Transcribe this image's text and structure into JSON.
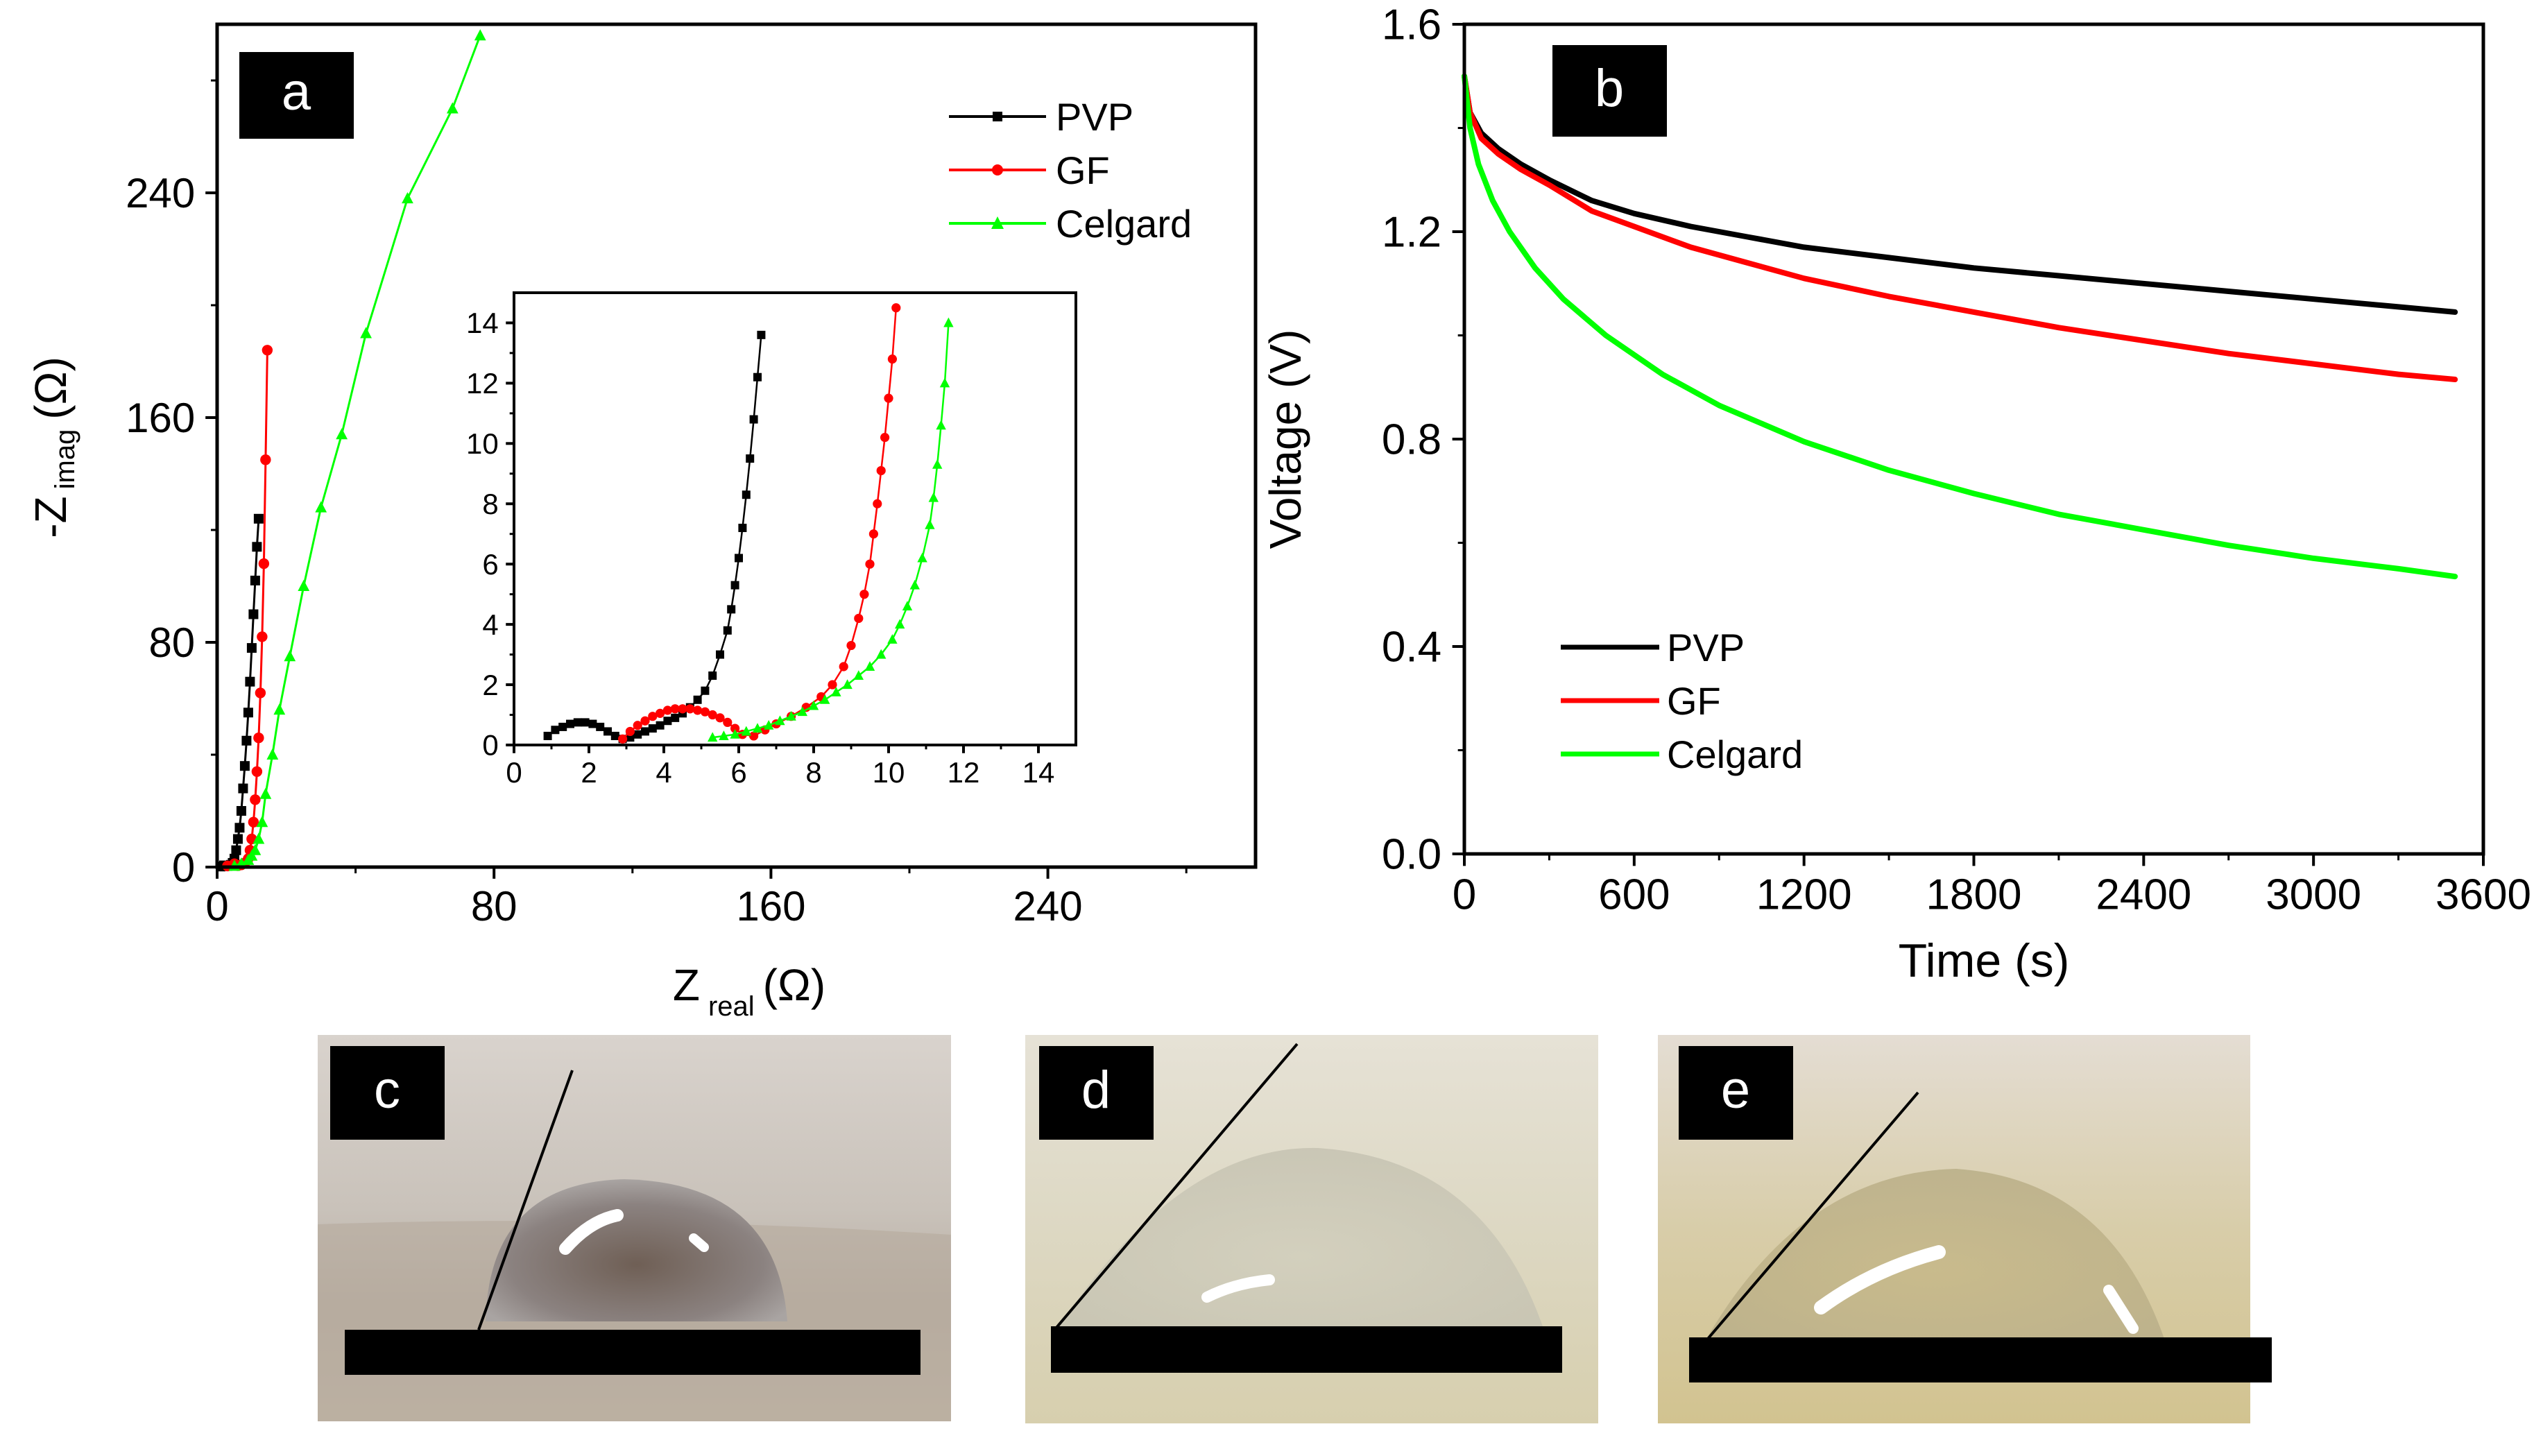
{
  "panel_labels": {
    "a": "a",
    "b": "b",
    "c": "c",
    "d": "d",
    "e": "e"
  },
  "chart_data": [
    {
      "id": "a",
      "type": "scatter",
      "title": "",
      "xlabel": {
        "main": "Z",
        "sub": "real",
        "unit": "(Ω)"
      },
      "ylabel": {
        "main": "-Z",
        "sub": "imag",
        "unit": "(Ω)"
      },
      "xlim": [
        0,
        300
      ],
      "ylim": [
        0,
        300
      ],
      "xticks": [
        0,
        80,
        160,
        240
      ],
      "yticks": [
        0,
        80,
        160,
        240
      ],
      "legend_position": "top-right",
      "series": [
        {
          "name": "PVP",
          "color": "#000000",
          "marker": "square",
          "x": [
            1,
            2,
            3,
            4,
            4.5,
            5,
            5.5,
            6,
            6.5,
            7,
            7.5,
            8,
            8.5,
            9,
            9.5,
            10,
            10.5,
            11,
            11.5,
            12
          ],
          "y": [
            0.2,
            0.6,
            0.4,
            0.8,
            1.5,
            3,
            6,
            10,
            14,
            20,
            28,
            36,
            45,
            55,
            66,
            78,
            90,
            102,
            114,
            124
          ]
        },
        {
          "name": "GF",
          "color": "#ff0000",
          "marker": "circle",
          "x": [
            3,
            5,
            6,
            7,
            8,
            9,
            9.5,
            10,
            10.5,
            11,
            11.5,
            12,
            12.5,
            13,
            13.5,
            14,
            14.5
          ],
          "y": [
            0.4,
            1.2,
            0.5,
            0.8,
            1.5,
            3,
            6,
            10,
            16,
            24,
            34,
            46,
            62,
            82,
            108,
            145,
            184
          ]
        },
        {
          "name": "Celgard",
          "color": "#00ff00",
          "marker": "triangle",
          "x": [
            5,
            7,
            9,
            10,
            11,
            12,
            13,
            14,
            16,
            18,
            21,
            25,
            30,
            36,
            43,
            55,
            68,
            76
          ],
          "y": [
            0.4,
            1.2,
            2.5,
            4,
            6,
            10,
            16,
            26,
            40,
            56,
            75,
            100,
            128,
            154,
            190,
            238,
            270,
            296
          ]
        }
      ],
      "inset": {
        "xlim": [
          0,
          15
        ],
        "ylim": [
          0,
          15
        ],
        "xticks": [
          0,
          2,
          4,
          6,
          8,
          10,
          12,
          14
        ],
        "yticks": [
          0,
          2,
          4,
          6,
          8,
          10,
          12,
          14
        ],
        "series": [
          {
            "name": "PVP",
            "color": "#000000",
            "marker": "square",
            "x": [
              0.9,
              1.1,
              1.3,
              1.5,
              1.7,
              1.9,
              2.1,
              2.3,
              2.5,
              2.7,
              2.9,
              3.1,
              3.3,
              3.5,
              3.7,
              3.9,
              4.1,
              4.3,
              4.5,
              4.7,
              4.9,
              5.1,
              5.3,
              5.5,
              5.7,
              5.8,
              5.9,
              6.0,
              6.1,
              6.2,
              6.3,
              6.4,
              6.5,
              6.6
            ],
            "y": [
              0.3,
              0.5,
              0.6,
              0.7,
              0.75,
              0.75,
              0.7,
              0.6,
              0.45,
              0.3,
              0.2,
              0.25,
              0.35,
              0.45,
              0.55,
              0.65,
              0.8,
              0.9,
              1.05,
              1.25,
              1.5,
              1.8,
              2.3,
              3.0,
              3.8,
              4.5,
              5.3,
              6.2,
              7.2,
              8.3,
              9.5,
              10.8,
              12.2,
              13.6
            ]
          },
          {
            "name": "GF",
            "color": "#ff0000",
            "marker": "circle",
            "x": [
              2.9,
              3.1,
              3.3,
              3.5,
              3.7,
              3.9,
              4.1,
              4.3,
              4.5,
              4.7,
              4.9,
              5.1,
              5.3,
              5.5,
              5.7,
              5.9,
              6.1,
              6.4,
              6.7,
              7.0,
              7.4,
              7.8,
              8.2,
              8.5,
              8.8,
              9.0,
              9.2,
              9.35,
              9.5,
              9.6,
              9.7,
              9.8,
              9.9,
              10.0,
              10.1,
              10.2
            ],
            "y": [
              0.2,
              0.45,
              0.65,
              0.8,
              0.95,
              1.05,
              1.15,
              1.2,
              1.2,
              1.2,
              1.15,
              1.1,
              1.0,
              0.9,
              0.75,
              0.55,
              0.35,
              0.3,
              0.5,
              0.7,
              0.95,
              1.25,
              1.6,
              2.0,
              2.6,
              3.3,
              4.2,
              5.0,
              6.0,
              7.0,
              8.0,
              9.1,
              10.2,
              11.5,
              12.8,
              14.5
            ]
          },
          {
            "name": "Celgard",
            "color": "#00ff00",
            "marker": "triangle",
            "x": [
              5.3,
              5.6,
              5.9,
              6.2,
              6.5,
              6.8,
              7.1,
              7.4,
              7.7,
              8.0,
              8.3,
              8.6,
              8.9,
              9.2,
              9.5,
              9.8,
              10.1,
              10.3,
              10.5,
              10.7,
              10.9,
              11.1,
              11.2,
              11.3,
              11.4,
              11.5,
              11.6
            ],
            "y": [
              0.25,
              0.3,
              0.35,
              0.45,
              0.55,
              0.65,
              0.8,
              0.95,
              1.1,
              1.3,
              1.5,
              1.75,
              2.0,
              2.3,
              2.6,
              3.0,
              3.5,
              4.0,
              4.6,
              5.3,
              6.2,
              7.3,
              8.2,
              9.3,
              10.6,
              12.0,
              14.0
            ]
          }
        ]
      }
    },
    {
      "id": "b",
      "type": "line",
      "title": "",
      "xlabel": "Time (s)",
      "ylabel": "Voltage (V)",
      "xlim": [
        0,
        3600
      ],
      "ylim": [
        0.0,
        1.6
      ],
      "xticks": [
        0,
        600,
        1200,
        1800,
        2400,
        3000,
        3600
      ],
      "yticks": [
        0.0,
        0.4,
        0.8,
        1.2,
        1.6
      ],
      "legend_position": "bottom-left",
      "series": [
        {
          "name": "PVP",
          "color": "#000000",
          "x": [
            0,
            20,
            60,
            120,
            200,
            300,
            450,
            600,
            800,
            1000,
            1200,
            1500,
            1800,
            2100,
            2400,
            2700,
            3000,
            3300,
            3500
          ],
          "y": [
            1.5,
            1.43,
            1.39,
            1.36,
            1.33,
            1.3,
            1.26,
            1.235,
            1.21,
            1.19,
            1.17,
            1.15,
            1.13,
            1.115,
            1.1,
            1.085,
            1.07,
            1.055,
            1.045
          ]
        },
        {
          "name": "GF",
          "color": "#ff0000",
          "x": [
            0,
            20,
            60,
            120,
            200,
            300,
            450,
            600,
            800,
            1000,
            1200,
            1500,
            1800,
            2100,
            2400,
            2700,
            3000,
            3300,
            3500
          ],
          "y": [
            1.5,
            1.43,
            1.38,
            1.35,
            1.32,
            1.29,
            1.24,
            1.21,
            1.17,
            1.14,
            1.11,
            1.075,
            1.045,
            1.015,
            0.99,
            0.965,
            0.945,
            0.925,
            0.915
          ]
        },
        {
          "name": "Celgard",
          "color": "#00ff00",
          "x": [
            0,
            20,
            50,
            100,
            160,
            250,
            350,
            500,
            700,
            900,
            1200,
            1500,
            1800,
            2100,
            2400,
            2700,
            3000,
            3300,
            3500
          ],
          "y": [
            1.5,
            1.4,
            1.33,
            1.26,
            1.2,
            1.13,
            1.07,
            1.0,
            0.925,
            0.865,
            0.795,
            0.74,
            0.695,
            0.655,
            0.625,
            0.595,
            0.57,
            0.55,
            0.535
          ]
        }
      ]
    }
  ]
}
